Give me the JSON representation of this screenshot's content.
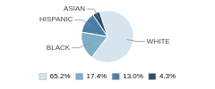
{
  "chart_data": {
    "type": "pie",
    "categories": [
      "WHITE",
      "BLACK",
      "HISPANIC",
      "ASIAN"
    ],
    "values": [
      65.2,
      17.4,
      13.0,
      4.3
    ],
    "value_labels": [
      "65.2%",
      "17.4%",
      "13.0%",
      "4.3%"
    ],
    "colors": [
      "#d6e4ef",
      "#7eaec8",
      "#4a7fa5",
      "#2c4f6b"
    ],
    "legend": "bottom"
  }
}
